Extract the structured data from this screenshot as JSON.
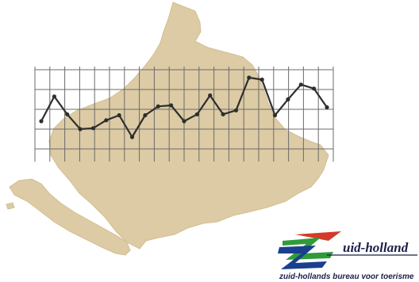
{
  "colors": {
    "map_fill": "#dccba4",
    "map_stroke": "#d2bf95",
    "grid": "#6b6b6b",
    "line": "#2e2e2e",
    "logo_blue": "#1a3f8f",
    "logo_green": "#2f9b3a",
    "logo_red": "#d43a2a",
    "logo_navy": "#1b1f4b"
  },
  "map": {
    "region": "Zuid-Holland",
    "icon": "province-map-silhouette"
  },
  "chart_data": {
    "type": "line",
    "title": "",
    "xlabel": "",
    "ylabel": "",
    "grid": true,
    "x_gridlines": 21,
    "y_gridlines": 5,
    "ylim": [
      0,
      4
    ],
    "series": [
      {
        "name": "",
        "values": [
          1.4,
          2.65,
          1.75,
          1.0,
          1.05,
          1.45,
          1.7,
          0.6,
          1.7,
          2.15,
          2.2,
          1.4,
          1.75,
          2.7,
          1.75,
          1.95,
          3.6,
          3.5,
          1.7,
          2.5,
          3.25,
          3.05,
          2.1
        ]
      }
    ]
  },
  "logo": {
    "wordmark": "uid-holland",
    "tagline": "zuid-hollands bureau voor toerisme"
  }
}
